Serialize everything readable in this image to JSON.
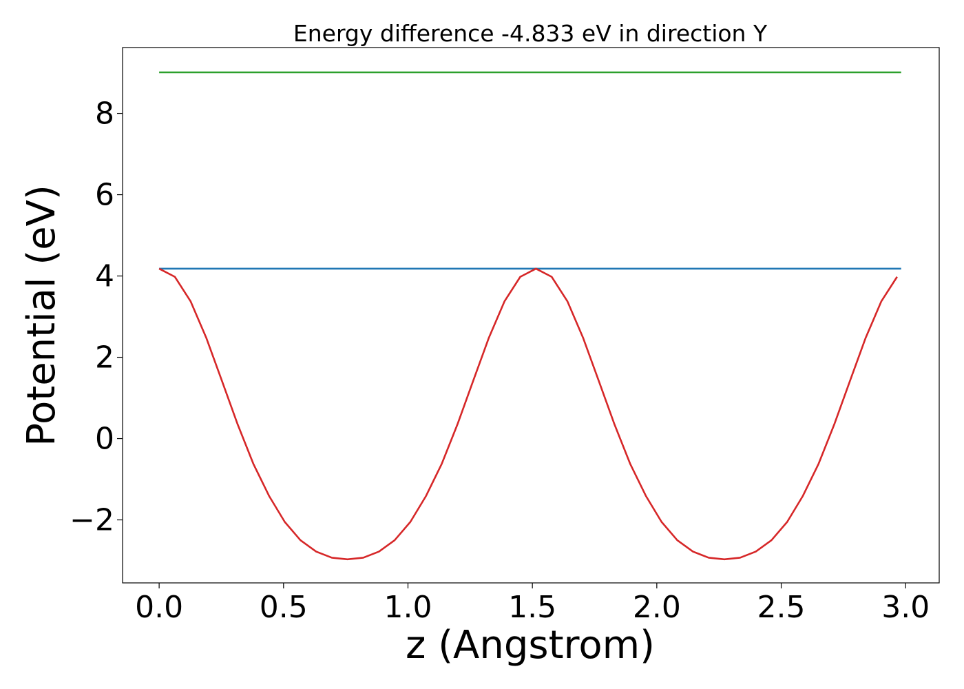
{
  "chart_data": {
    "type": "line",
    "title": "Energy difference -4.833 eV in direction Y",
    "xlabel": "z (Angstrom)",
    "ylabel": "Potential (eV)",
    "xlim": [
      -0.147,
      3.135
    ],
    "ylim": [
      -3.55,
      9.62
    ],
    "xticks": [
      0.0,
      0.5,
      1.0,
      1.5,
      2.0,
      2.5,
      3.0
    ],
    "xtick_labels": [
      "0.0",
      "0.5",
      "1.0",
      "1.5",
      "2.0",
      "2.5",
      "3.0"
    ],
    "yticks": [
      -2,
      0,
      2,
      4,
      6,
      8
    ],
    "ytick_labels": [
      "−2",
      "0",
      "2",
      "4",
      "6",
      "8"
    ],
    "grid": false,
    "legend": "none",
    "series": [
      {
        "color": "#2ca02c",
        "x": [
          0.0,
          2.982
        ],
        "y": [
          9.01,
          9.01
        ]
      },
      {
        "color": "#1f77b4",
        "x": [
          0.0,
          2.982
        ],
        "y": [
          4.18,
          4.18
        ]
      },
      {
        "color": "#d62728",
        "x": [
          0.0,
          0.0631,
          0.1262,
          0.1893,
          0.2524,
          0.3155,
          0.3786,
          0.4417,
          0.5048,
          0.5679,
          0.631,
          0.6941,
          0.7572,
          0.8203,
          0.8834,
          0.9465,
          1.0096,
          1.0727,
          1.1358,
          1.1989,
          1.262,
          1.3251,
          1.3882,
          1.4513,
          1.5144,
          1.5775,
          1.6406,
          1.7037,
          1.7668,
          1.8299,
          1.893,
          1.9561,
          2.0192,
          2.0823,
          2.1454,
          2.2085,
          2.2716,
          2.3347,
          2.3978,
          2.4609,
          2.524,
          2.5871,
          2.6502,
          2.7133,
          2.7764,
          2.8395,
          2.9026,
          2.9657
        ],
        "y": [
          4.18,
          3.98,
          3.38,
          2.48,
          1.42,
          0.35,
          -0.62,
          -1.41,
          -2.05,
          -2.5,
          -2.78,
          -2.93,
          -2.97,
          -2.93,
          -2.78,
          -2.5,
          -2.05,
          -1.41,
          -0.62,
          0.35,
          1.42,
          2.48,
          3.38,
          3.98,
          4.18,
          3.98,
          3.38,
          2.48,
          1.42,
          0.35,
          -0.62,
          -1.41,
          -2.05,
          -2.5,
          -2.78,
          -2.93,
          -2.97,
          -2.93,
          -2.78,
          -2.5,
          -2.05,
          -1.41,
          -0.62,
          0.35,
          1.42,
          2.48,
          3.38,
          3.98
        ]
      }
    ]
  }
}
